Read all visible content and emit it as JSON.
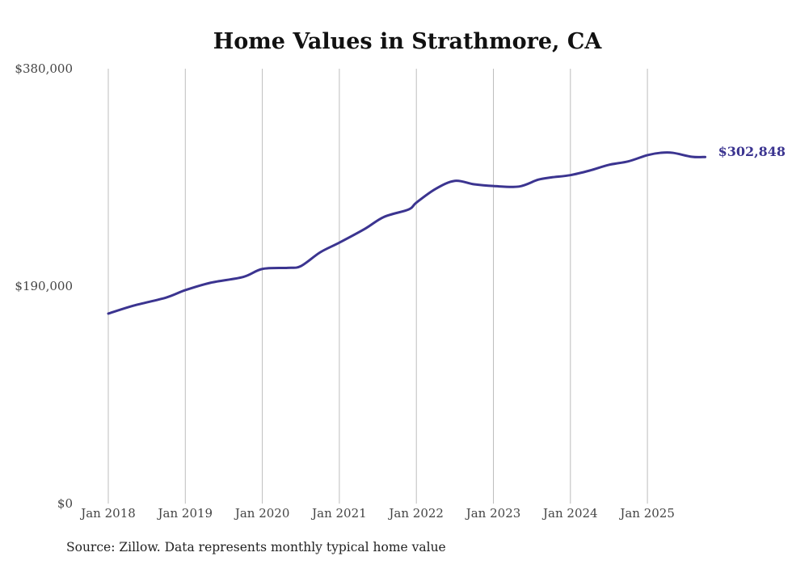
{
  "chart_data": {
    "type": "line",
    "title": "Home Values in Strathmore, CA",
    "xlabel": "",
    "ylabel": "",
    "ylim": [
      0,
      380000
    ],
    "xlim": [
      2018,
      2025.75
    ],
    "grid": "vertical",
    "y_ticks": [
      {
        "value": 0,
        "label": "$0"
      },
      {
        "value": 190000,
        "label": "$190,000"
      },
      {
        "value": 380000,
        "label": "$380,000"
      }
    ],
    "x_ticks": [
      {
        "value": 2018,
        "label": "Jan 2018"
      },
      {
        "value": 2019,
        "label": "Jan 2019"
      },
      {
        "value": 2020,
        "label": "Jan 2020"
      },
      {
        "value": 2021,
        "label": "Jan 2021"
      },
      {
        "value": 2022,
        "label": "Jan 2022"
      },
      {
        "value": 2023,
        "label": "Jan 2023"
      },
      {
        "value": 2024,
        "label": "Jan 2024"
      },
      {
        "value": 2025,
        "label": "Jan 2025"
      }
    ],
    "series": [
      {
        "name": "Typical home value",
        "color": "#3b3490",
        "x": [
          2018.0,
          2018.33,
          2018.75,
          2019.0,
          2019.33,
          2019.75,
          2020.0,
          2020.33,
          2020.5,
          2020.75,
          2021.0,
          2021.33,
          2021.58,
          2021.9,
          2022.0,
          2022.25,
          2022.5,
          2022.75,
          2023.0,
          2023.33,
          2023.58,
          2023.75,
          2024.0,
          2024.25,
          2024.5,
          2024.75,
          2025.0,
          2025.17,
          2025.33,
          2025.58,
          2025.75
        ],
        "values": [
          166000,
          173000,
          180000,
          186500,
          193000,
          198000,
          205000,
          206000,
          207500,
          219500,
          228000,
          240000,
          250500,
          257000,
          263000,
          275000,
          282000,
          279000,
          277500,
          277000,
          283000,
          285000,
          287000,
          291000,
          296000,
          299000,
          304500,
          306500,
          306500,
          303000,
          302848
        ]
      }
    ],
    "end_label": "$302,848"
  },
  "source": "Source: Zillow. Data represents monthly typical home value"
}
